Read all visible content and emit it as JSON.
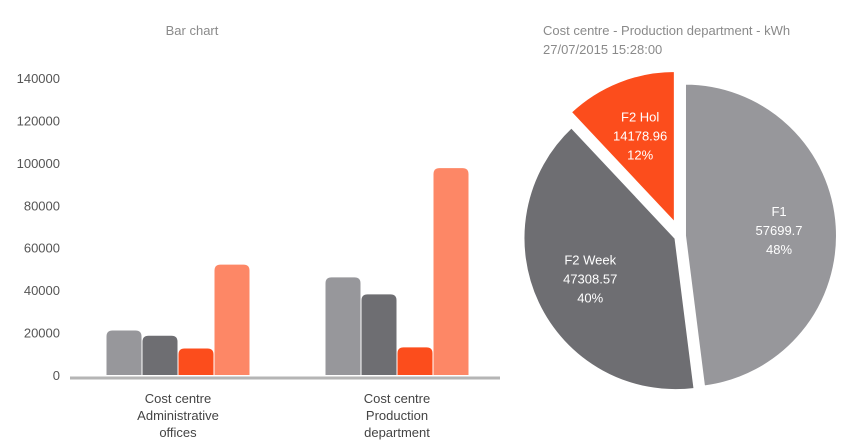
{
  "chart_data": [
    {
      "type": "bar",
      "title": "Bar chart",
      "categories": [
        [
          "Cost centre",
          "Administrative",
          "offices"
        ],
        [
          "Cost centre",
          "Production",
          "department"
        ]
      ],
      "series": [
        {
          "color": "#97979b",
          "values": [
            21000,
            46000
          ]
        },
        {
          "color": "#6e6e72",
          "values": [
            18500,
            38000
          ]
        },
        {
          "color": "#fc4d1c",
          "values": [
            12500,
            13000
          ]
        },
        {
          "color": "#fd8766",
          "values": [
            52000,
            97500
          ]
        }
      ],
      "ylim": [
        0,
        140000
      ],
      "yticks": [
        0,
        20000,
        40000,
        60000,
        80000,
        100000,
        120000,
        140000
      ],
      "grid": false
    },
    {
      "type": "pie",
      "title": "Cost centre - Production department - kWh",
      "subtitle": "27/07/2015 15:28:00",
      "slices": [
        {
          "label": "F1",
          "value": "57699.7",
          "percent": "48%",
          "color": "#97979b",
          "exploded": false
        },
        {
          "label": "F2 Week",
          "value": "47308.57",
          "percent": "40%",
          "color": "#6e6e72",
          "exploded": false
        },
        {
          "label": "F2 Hol",
          "value": "14178.96",
          "percent": "12%",
          "color": "#fc4d1c",
          "exploded": true
        }
      ]
    }
  ]
}
